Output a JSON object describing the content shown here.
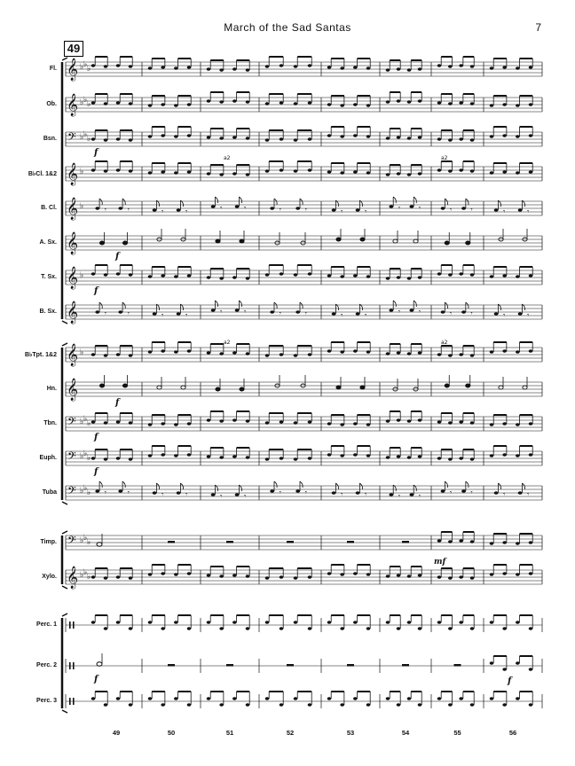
{
  "header": {
    "title": "March of the Sad Santas",
    "page_number": "7"
  },
  "rehearsal_mark": "49",
  "instruments": [
    {
      "name": "Fl.",
      "clef": "treble",
      "flats": 3,
      "pattern": "eighths",
      "dyn": ""
    },
    {
      "name": "Ob.",
      "clef": "treble",
      "flats": 3,
      "pattern": "eighths",
      "dyn": ""
    },
    {
      "name": "Bsn.",
      "clef": "bass",
      "flats": 3,
      "pattern": "eighths",
      "dyn": "f"
    },
    {
      "name": "B♭Cl. 1&2",
      "clef": "treble",
      "flats": 1,
      "pattern": "eighths",
      "dyn": ""
    },
    {
      "name": "B. Cl.",
      "clef": "treble",
      "flats": 1,
      "pattern": "offbeat",
      "dyn": ""
    },
    {
      "name": "A. Sx.",
      "clef": "treble",
      "flats": 0,
      "pattern": "quarters",
      "dyn": "f"
    },
    {
      "name": "T. Sx.",
      "clef": "treble",
      "flats": 1,
      "pattern": "eighths",
      "dyn": "f"
    },
    {
      "name": "B. Sx.",
      "clef": "treble",
      "flats": 0,
      "pattern": "offbeat",
      "dyn": ""
    },
    {
      "name": "B♭Tpt. 1&2",
      "clef": "treble",
      "flats": 1,
      "pattern": "eighths",
      "dyn": ""
    },
    {
      "name": "Hn.",
      "clef": "treble",
      "flats": 0,
      "pattern": "quarters",
      "dyn": "f"
    },
    {
      "name": "Tbn.",
      "clef": "bass",
      "flats": 3,
      "pattern": "eighths",
      "dyn": "f"
    },
    {
      "name": "Euph.",
      "clef": "bass",
      "flats": 3,
      "pattern": "eighths",
      "dyn": "f"
    },
    {
      "name": "Tuba",
      "clef": "bass",
      "flats": 3,
      "pattern": "offbeat",
      "dyn": ""
    },
    {
      "name": "Timp.",
      "clef": "bass",
      "flats": 3,
      "pattern": "rests",
      "dyn": ""
    },
    {
      "name": "Xylo.",
      "clef": "treble",
      "flats": 3,
      "pattern": "eighths",
      "dyn": ""
    },
    {
      "name": "Perc. 1",
      "clef": "perc",
      "flats": 0,
      "pattern": "perc",
      "dyn": ""
    },
    {
      "name": "Perc. 2",
      "clef": "perc",
      "flats": 0,
      "pattern": "rests",
      "dyn": "f"
    },
    {
      "name": "Perc. 3",
      "clef": "perc",
      "flats": 0,
      "pattern": "perc",
      "dyn": ""
    }
  ],
  "markings": {
    "a2": "a2",
    "mf": "mf",
    "f": "f"
  },
  "measure_numbers": [
    "49",
    "50",
    "51",
    "52",
    "53",
    "54",
    "55",
    "56"
  ],
  "colors": {
    "ink": "#111111",
    "background": "#ffffff"
  }
}
